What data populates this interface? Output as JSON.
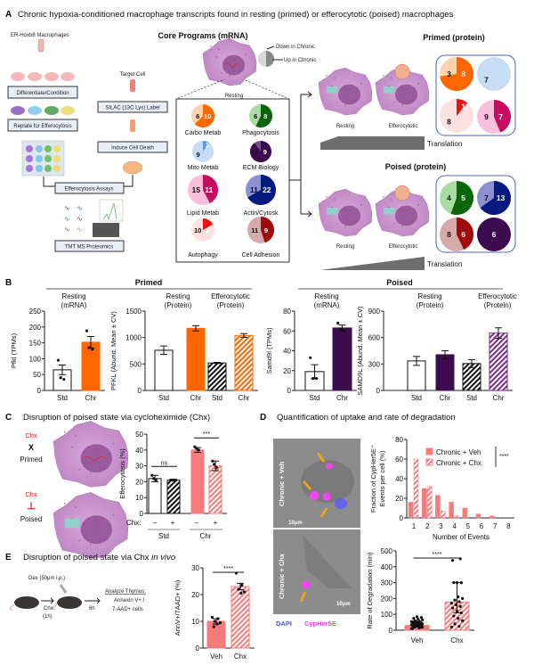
{
  "panelA": {
    "label": "A",
    "title": "Chronic hypoxia-conditioned macrophage transcripts found in resting (primed) or efferocytotic (poised) macrophages",
    "workflow": {
      "source": "ER-Hoxb8 Macrophages",
      "differentiate": "Differentiate/Condition",
      "replate": "Replate for Efferocytosis",
      "target": "Target Cell",
      "silac": "SILAC (13C Lys) Label",
      "death": "Induce Cell Death",
      "assays": "Efferocytosis Assays",
      "proteomics": "TMT MS Proteomics"
    },
    "core_title": "Core Programs (mRNA)",
    "legend_down": "Down in Chronic",
    "legend_up": "Up in Chronic",
    "resting_label": "Resting",
    "programs": [
      {
        "name": "Carbo Metab",
        "down": 6,
        "up": 10,
        "light": "#fdd3ae",
        "dark": "#ff6600"
      },
      {
        "name": "Phagocytosis",
        "down": 6,
        "up": 8,
        "light": "#a9dca2",
        "dark": "#0b650b"
      },
      {
        "name": "Mito Metab",
        "down": 9,
        "up": 1,
        "light": "#c7dcf5",
        "dark": "#4d9de8"
      },
      {
        "name": "ECM Biology",
        "down": 1,
        "up": 9,
        "light": "#7b4f8c",
        "dark": "#3d0b50"
      },
      {
        "name": "Lipid Metab",
        "down": 15,
        "up": 11,
        "light": "#f9bfdc",
        "dark": "#c80a62"
      },
      {
        "name": "Actin/Cytosk",
        "down": 11,
        "up": 22,
        "light": "#8a90d2",
        "dark": "#071a82"
      },
      {
        "name": "Autophagy",
        "down": 10,
        "up": 2,
        "light": "#fde0e0",
        "dark": "#ee1111"
      },
      {
        "name": "Cell Adhesion",
        "down": 11,
        "up": 9,
        "light": "#d5aaaa",
        "dark": "#a00a0a"
      }
    ],
    "primed": {
      "title": "Primed (protein)",
      "cell_labels": [
        "Resting",
        "Efferocytotic"
      ],
      "translation": "Translation",
      "pies": [
        {
          "program": "Carbo Metab",
          "down": 3,
          "up": 8,
          "light": "#fdd3ae",
          "dark": "#ff6600"
        },
        {
          "program": "Mito Metab",
          "down": 7,
          "up": 0,
          "light": "#c7dcf5",
          "dark": "#4d9de8"
        },
        {
          "program": "Autophagy",
          "down": 8,
          "up": 1,
          "light": "#fde0e0",
          "dark": "#ee1111"
        },
        {
          "program": "Lipid Metab",
          "down": 9,
          "up": 7,
          "light": "#f9bfdc",
          "dark": "#c80a62"
        }
      ]
    },
    "poised": {
      "title": "Poised (protein)",
      "cell_labels": [
        "Resting",
        "Efferocytotic"
      ],
      "translation": "Translation",
      "pies": [
        {
          "program": "Phagocytosis",
          "down": 4,
          "up": 5,
          "light": "#a9dca2",
          "dark": "#0b650b"
        },
        {
          "program": "Actin/Cytosk",
          "down": 7,
          "up": 13,
          "light": "#8a90d2",
          "dark": "#071a82"
        },
        {
          "program": "Cell Adhesion",
          "down": 8,
          "up": 6,
          "light": "#d5aaaa",
          "dark": "#a00a0a"
        },
        {
          "program": "ECM Biology",
          "down": 0,
          "up": 6,
          "light": "#7b4f8c",
          "dark": "#3d0b50"
        }
      ]
    }
  },
  "panelB": {
    "label": "B",
    "primed_header": "Primed",
    "poised_header": "Poised"
  },
  "panelC": {
    "label": "C",
    "title": "Disruption of poised state via cycloheximide (Chx)",
    "chx": "Chx",
    "primed_symbol": "X",
    "poised_symbol": "⊥",
    "primed": "Primed",
    "poised": "Poised",
    "chx_row_label": "Chx:",
    "chx_signs": [
      "–",
      "+",
      "–",
      "+"
    ],
    "groups": [
      "Std",
      "Chr"
    ]
  },
  "panelD": {
    "label": "D",
    "title": "Quantification of uptake and rate of degradation",
    "image1_label": "Chronic + Veh",
    "image2_label": "Chronic + Chx",
    "scale_bar": "10μm",
    "dapi": "DAPI",
    "cypher": "CypHer5E"
  },
  "panelE": {
    "label": "E",
    "title": "Disruption of poised state via Chx",
    "title_italic": "in vivo",
    "dex": "Dex (50μm i.p.)",
    "chx_step": "Chx",
    "chx_time": "(1h)",
    "wait": "6h",
    "analyze": "Analyze Thymus:",
    "readout1": "Annexin V+ /",
    "readout2": "7-AAD+ cells"
  },
  "chart_data": [
    {
      "id": "b1",
      "type": "bar",
      "title": [
        "Resting",
        "(mRNA)"
      ],
      "ylabel": "Pfkl (TPMs)",
      "ylim": [
        0,
        250
      ],
      "yticks": [
        0,
        50,
        100,
        150,
        200,
        250
      ],
      "categories": [
        "Std",
        "Chr"
      ],
      "values": [
        65,
        152
      ],
      "errors": [
        15,
        18
      ],
      "points": [
        [
          95,
          35,
          40
        ],
        [
          188,
          130,
          135
        ]
      ],
      "styles": [
        "open",
        "solid:#ff6600"
      ]
    },
    {
      "id": "b2",
      "type": "bar",
      "title": [
        "Resting",
        "(Protein)"
      ],
      "title2": [
        "Efferocytotic",
        "(Protein)"
      ],
      "ylabel": "PFKL (Abund. Mean ± CV)",
      "ylim": [
        0,
        1500
      ],
      "yticks": [
        0,
        500,
        1000,
        1500
      ],
      "categories": [
        "Std",
        "Chr",
        "Std",
        "Chr"
      ],
      "values": [
        760,
        1175,
        520,
        1040
      ],
      "errors": [
        80,
        50,
        10,
        35
      ],
      "styles": [
        "open",
        "solid:#ff6600",
        "hatch:#111111",
        "hatch:#ff6600"
      ]
    },
    {
      "id": "b3",
      "type": "bar",
      "title": [
        "Resting",
        "(mRNA)"
      ],
      "ylabel": "Samd9l (TPMs)",
      "ylim": [
        0,
        80
      ],
      "yticks": [
        0,
        20,
        40,
        60,
        80
      ],
      "categories": [
        "Std",
        "Chr"
      ],
      "values": [
        19,
        63
      ],
      "errors": [
        7,
        3
      ],
      "points": [
        [
          33,
          12,
          12
        ],
        [
          68,
          60,
          62
        ]
      ],
      "styles": [
        "open",
        "solid:#3d0b50"
      ]
    },
    {
      "id": "b4",
      "type": "bar",
      "title": [
        "Resting",
        "(Protein)"
      ],
      "title2": [
        "Efferocytotic",
        "(Protein)"
      ],
      "ylabel": "SAMD9L (Abund. Mean ± CV)",
      "ylim": [
        0,
        900
      ],
      "yticks": [
        0,
        300,
        600,
        900
      ],
      "categories": [
        "Std",
        "Chr",
        "Std",
        "Chr"
      ],
      "values": [
        335,
        405,
        305,
        650
      ],
      "errors": [
        50,
        45,
        45,
        60
      ],
      "styles": [
        "open",
        "solid:#3d0b50",
        "hatch:#111111",
        "hatch:#7a2a8a"
      ]
    },
    {
      "id": "c1",
      "type": "bar",
      "ylabel": "Efferocytosis (%)",
      "ylim": [
        0,
        50
      ],
      "yticks": [
        0,
        10,
        20,
        30,
        40,
        50
      ],
      "categories": [
        "Std –",
        "Std +",
        "Chr –",
        "Chr +"
      ],
      "values": [
        22,
        21,
        40,
        30
      ],
      "errors": [
        2,
        0.5,
        1.5,
        3
      ],
      "points": [
        [
          24,
          21,
          22
        ],
        [
          21,
          21,
          21
        ],
        [
          42,
          40,
          41
        ],
        [
          33,
          29,
          31
        ]
      ],
      "styles": [
        "open",
        "hatch:#111111",
        "solid:#f77b7b",
        "hatch:#f77b7b"
      ],
      "significance": [
        {
          "pair": [
            0,
            1
          ],
          "label": "ns"
        },
        {
          "pair": [
            2,
            3
          ],
          "label": "***"
        }
      ]
    },
    {
      "id": "d1",
      "type": "bar",
      "xlabel": "Number of Events",
      "ylabel": [
        "Fraction of CypHer5E⁺",
        "Events per cell (%)"
      ],
      "ylim": [
        0,
        80
      ],
      "yticks": [
        0,
        20,
        40,
        60,
        80
      ],
      "categories": [
        "1",
        "2",
        "3",
        "4",
        "5",
        "6",
        "7",
        "8"
      ],
      "series": [
        {
          "name": "Chronic + Veh",
          "values": [
            16,
            30,
            23,
            16,
            10,
            4,
            2,
            0
          ],
          "style": "solid:#f77b7b"
        },
        {
          "name": "Chronic + Chx",
          "values": [
            60,
            32,
            7,
            2,
            0,
            0,
            0,
            0
          ],
          "style": "hatch:#f77b7b"
        }
      ],
      "significance": [
        {
          "label": "****"
        }
      ],
      "legend": "top-right"
    },
    {
      "id": "d2",
      "type": "bar",
      "ylabel": "Rate of Degradation (min)",
      "ylim": [
        0,
        500
      ],
      "yticks": [
        0,
        100,
        200,
        300,
        400,
        500
      ],
      "categories": [
        "Veh",
        "Chx"
      ],
      "values": [
        30,
        178
      ],
      "errors": [
        [
          20,
          40
        ],
        [
          110,
          300
        ]
      ],
      "points": [
        [
          10,
          15,
          20,
          20,
          25,
          25,
          28,
          30,
          30,
          32,
          35,
          35,
          38,
          40,
          40,
          42,
          45,
          45,
          48,
          50,
          50,
          55,
          55,
          58,
          60,
          65,
          70,
          75,
          80,
          85,
          12,
          18
        ],
        [
          20,
          25,
          40,
          60,
          75,
          90,
          110,
          120,
          140,
          150,
          160,
          170,
          180,
          190,
          200,
          210,
          300,
          300,
          300,
          440,
          450
        ]
      ],
      "styles": [
        "solid:#f77b7b",
        "hatch:#f77b7b"
      ],
      "significance": [
        {
          "pair": [
            0,
            1
          ],
          "label": "****"
        }
      ]
    },
    {
      "id": "e1",
      "type": "bar",
      "ylabel": "AnnV+/7AAD+ (%)",
      "ylim": [
        0,
        30
      ],
      "yticks": [
        0,
        10,
        20,
        30
      ],
      "categories": [
        "Veh",
        "Chx"
      ],
      "values": [
        10,
        23
      ],
      "errors": [
        1,
        1.2
      ],
      "points": [
        [
          11.5,
          11,
          10,
          9.5,
          9,
          8
        ],
        [
          28,
          23.5,
          22,
          21,
          20.5
        ]
      ],
      "styles": [
        "solid:#f77b7b",
        "hatch:#f77b7b"
      ],
      "significance": [
        {
          "pair": [
            0,
            1
          ],
          "label": "****"
        }
      ]
    }
  ]
}
